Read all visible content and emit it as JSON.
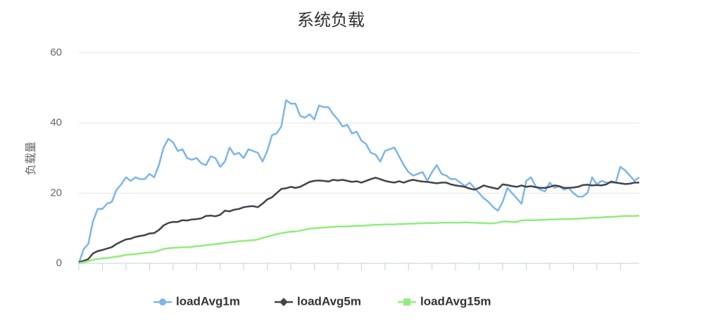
{
  "chart_data": {
    "type": "line",
    "title": "系统负载",
    "y_label": "负载量",
    "categories": [
      null,
      null,
      null,
      null,
      null,
      null,
      null,
      null,
      null,
      null,
      null,
      null,
      null,
      null,
      null,
      null,
      null,
      null,
      null,
      null,
      null,
      null,
      null,
      null,
      null,
      null,
      null,
      null,
      null,
      null,
      null,
      null,
      null,
      null,
      null,
      null,
      null,
      null,
      null,
      null,
      null,
      null,
      null,
      null,
      null,
      null,
      null,
      null,
      null,
      null,
      null,
      null,
      null,
      null,
      null,
      null,
      null,
      null,
      null,
      null,
      null,
      null,
      null,
      null,
      null,
      null,
      null,
      null,
      null,
      null,
      null,
      null,
      null,
      null,
      null,
      null,
      null,
      null,
      null,
      null,
      null,
      null,
      null,
      null,
      null,
      null,
      null,
      null,
      null,
      null,
      null,
      null,
      null,
      null,
      null,
      null,
      null,
      null,
      null,
      null,
      null,
      null,
      null,
      null,
      null,
      null,
      null,
      null,
      null,
      null,
      null,
      null,
      null,
      null,
      null,
      null,
      null,
      null,
      null,
      null
    ],
    "series": [
      {
        "name": "loadAvg1m",
        "color": "#7cb5ec",
        "marker": "circle",
        "values": [
          0,
          4,
          5.5,
          12,
          15.5,
          15.5,
          17,
          17.5,
          21,
          22.5,
          24.5,
          23.5,
          24.5,
          24,
          24,
          25.5,
          24.5,
          28,
          33,
          35.5,
          34.5,
          32,
          32.5,
          30,
          29.5,
          30,
          28.5,
          28,
          30.5,
          30,
          27.5,
          29,
          33,
          31,
          31.5,
          30,
          32.5,
          32,
          31.5,
          29,
          32,
          36.5,
          37,
          39,
          46.5,
          45.5,
          45.5,
          42,
          41.5,
          42.5,
          41,
          45,
          44.5,
          44.5,
          42.5,
          41,
          39,
          39.5,
          37,
          37.5,
          35,
          34,
          31.5,
          31,
          29,
          32,
          32.5,
          33,
          30.5,
          28,
          26,
          25,
          25.5,
          26,
          23.5,
          26,
          28,
          25.5,
          25,
          24,
          24,
          23,
          22,
          23,
          21.5,
          20,
          18.5,
          17.5,
          16,
          15,
          17.5,
          21.5,
          20,
          18.5,
          17,
          23.5,
          24.5,
          22,
          21,
          20.5,
          23,
          21.5,
          22,
          21,
          21.5,
          20,
          19,
          19,
          20,
          24.5,
          22.5,
          23.5,
          23,
          23,
          23,
          27.5,
          26.5,
          25,
          23.5,
          24.5
        ]
      },
      {
        "name": "loadAvg5m",
        "color": "#434348",
        "marker": "diamond",
        "values": [
          0.3,
          0.7,
          1.2,
          2.8,
          3.5,
          3.8,
          4.2,
          4.6,
          5.5,
          6.2,
          6.8,
          7,
          7.5,
          7.8,
          8,
          8.5,
          8.6,
          9.5,
          10.8,
          11.5,
          11.8,
          11.8,
          12.3,
          12.2,
          12.5,
          12.6,
          12.8,
          13.5,
          13.6,
          13.4,
          13.8,
          15,
          14.8,
          15.3,
          15.5,
          16,
          16.2,
          16.3,
          16,
          17,
          18.2,
          18.8,
          20,
          21.2,
          21.4,
          21.8,
          21.5,
          21.8,
          22.5,
          23.2,
          23.5,
          23.6,
          23.5,
          23.3,
          23.8,
          23.6,
          23.8,
          23.5,
          23.2,
          23.4,
          23,
          23.5,
          24,
          24.4,
          24,
          23.5,
          23.2,
          23,
          23.4,
          23,
          23.5,
          23.8,
          23.5,
          23.3,
          23.2,
          23,
          22.8,
          23,
          23,
          22.5,
          22.2,
          22,
          21.8,
          21.3,
          21,
          21.5,
          22.2,
          21.8,
          21.5,
          21.2,
          22.5,
          22.3,
          22,
          21.8,
          22.2,
          21.8,
          22,
          21.7,
          21.5,
          21.5,
          21.8,
          22.2,
          22,
          21.5,
          21.5,
          21.6,
          21.8,
          22.3,
          22.4,
          22.2,
          22.3,
          22.2,
          22.5,
          23.3,
          23,
          22.8,
          22.6,
          22.7,
          23,
          23
        ]
      },
      {
        "name": "loadAvg15m",
        "color": "#90ed7d",
        "marker": "square",
        "values": [
          0,
          0.3,
          0.6,
          1,
          1.2,
          1.4,
          1.5,
          1.7,
          1.9,
          2.1,
          2.4,
          2.5,
          2.6,
          2.8,
          3,
          3.1,
          3.3,
          3.6,
          4.1,
          4.3,
          4.4,
          4.5,
          4.6,
          4.6,
          4.7,
          4.9,
          5,
          5.2,
          5.3,
          5.5,
          5.6,
          5.8,
          6,
          6.1,
          6.3,
          6.4,
          6.5,
          6.6,
          6.8,
          7.2,
          7.6,
          7.9,
          8.3,
          8.6,
          8.8,
          9,
          9.1,
          9.3,
          9.6,
          9.9,
          10,
          10.1,
          10.2,
          10.3,
          10.4,
          10.5,
          10.5,
          10.5,
          10.6,
          10.7,
          10.7,
          10.8,
          10.9,
          11,
          11,
          11.1,
          11.1,
          11.1,
          11.2,
          11.2,
          11.3,
          11.3,
          11.4,
          11.4,
          11.5,
          11.5,
          11.5,
          11.6,
          11.6,
          11.6,
          11.6,
          11.6,
          11.7,
          11.6,
          11.6,
          11.5,
          11.5,
          11.4,
          11.4,
          11.6,
          11.9,
          11.9,
          11.8,
          11.8,
          12.2,
          12.3,
          12.3,
          12.3,
          12.4,
          12.4,
          12.5,
          12.5,
          12.6,
          12.6,
          12.6,
          12.7,
          12.7,
          12.8,
          12.9,
          13,
          13,
          13.1,
          13.2,
          13.2,
          13.3,
          13.4,
          13.5,
          13.5,
          13.5,
          13.6
        ]
      }
    ],
    "ylim": [
      0,
      60
    ],
    "yticks": [
      0,
      20,
      40,
      60
    ],
    "grid": true,
    "legend": "bottom"
  }
}
